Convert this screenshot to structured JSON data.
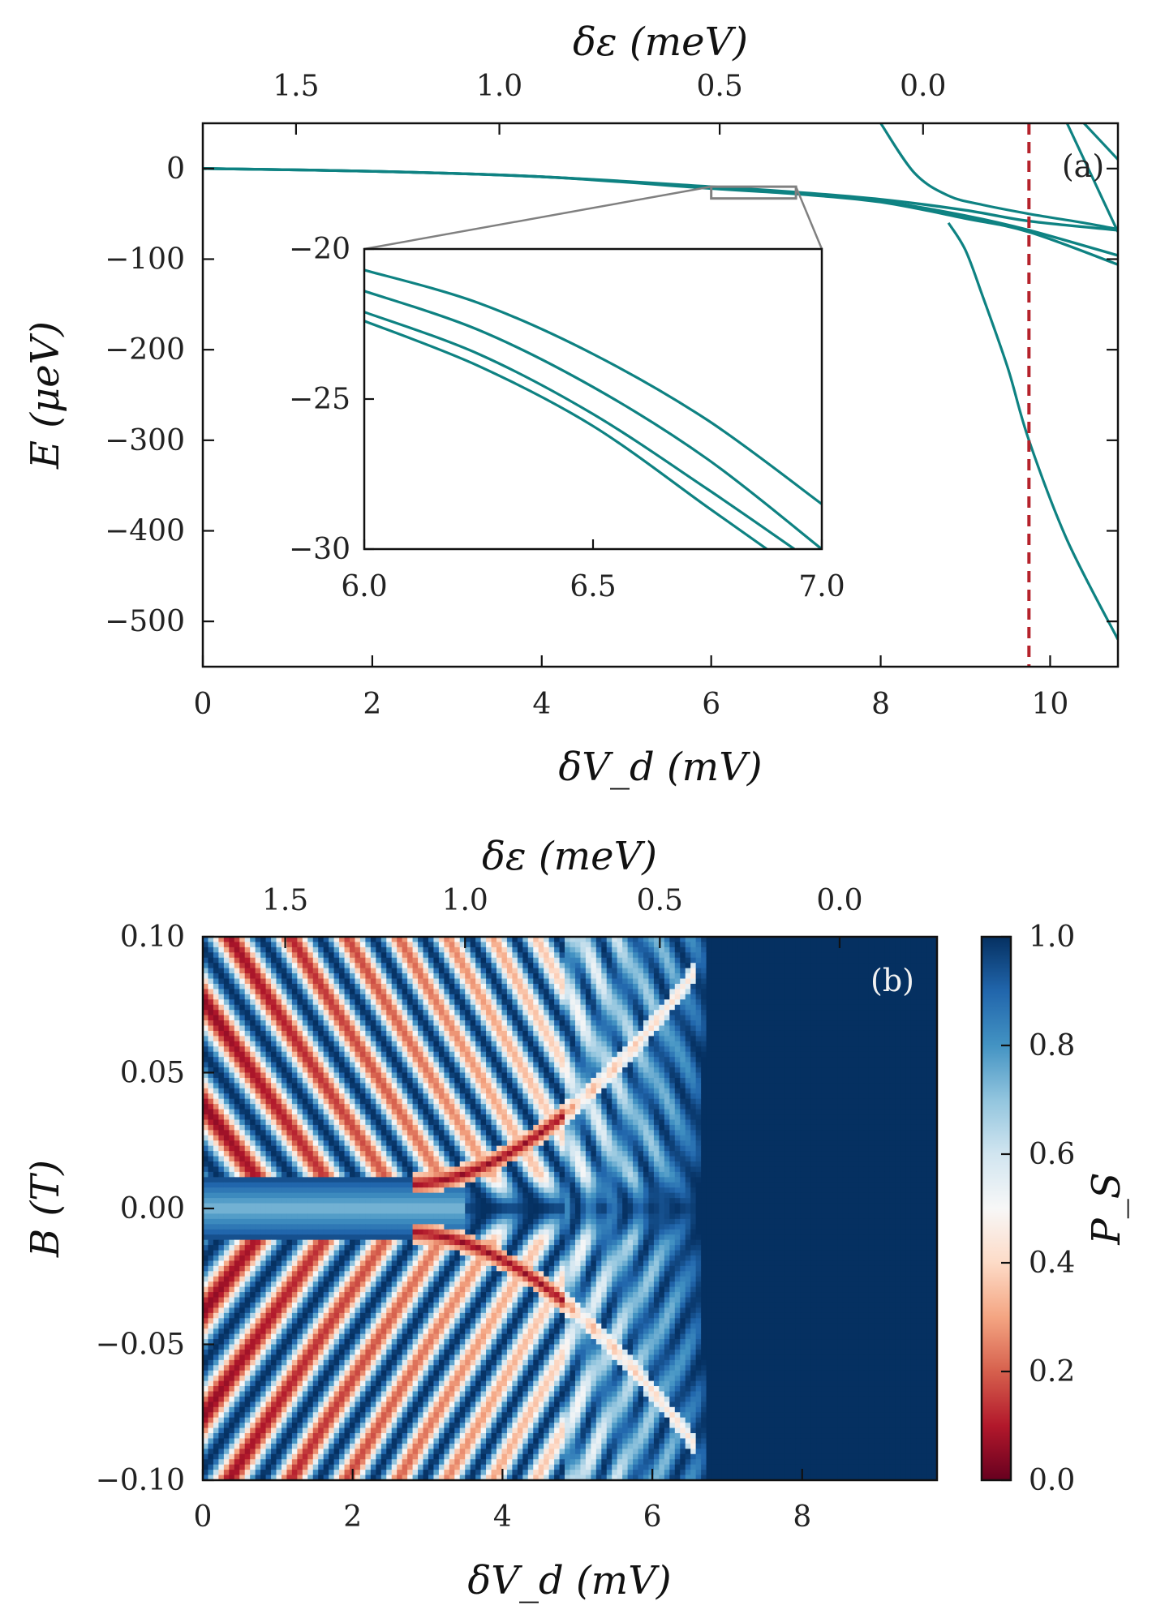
{
  "chart_data": [
    {
      "type": "line",
      "panel_label": "(a)",
      "xlabel": "δV_d (mV)",
      "ylabel": "E (μeV)",
      "top_xlabel": "δε (meV)",
      "xlim": [
        0,
        10.8
      ],
      "ylim": [
        -550,
        50
      ],
      "x_ticks": [
        0,
        2,
        4,
        6,
        8,
        10
      ],
      "y_ticks": [
        0,
        -100,
        -200,
        -300,
        -400,
        -500
      ],
      "top_ticks": [
        {
          "label": "1.5",
          "x": 1.1
        },
        {
          "label": "1.0",
          "x": 3.5
        },
        {
          "label": "0.5",
          "x": 6.1
        },
        {
          "label": "0.0",
          "x": 8.5
        }
      ],
      "vline": {
        "x": 9.75,
        "color": "#b5222b",
        "style": "dashed"
      },
      "line_color": "#0e8282",
      "series": [
        {
          "x": [
            0,
            2,
            4,
            6,
            7,
            8,
            9,
            9.75,
            10.8
          ],
          "y": [
            0,
            -3,
            -9,
            -20,
            -26,
            -34,
            -46,
            -58,
            -68
          ]
        },
        {
          "x": [
            0,
            2,
            4,
            6,
            7,
            8,
            9,
            9.75,
            10.8
          ],
          "y": [
            0,
            -3,
            -9,
            -21,
            -27,
            -36,
            -52,
            -68,
            -96
          ]
        },
        {
          "x": [
            0,
            2,
            4,
            6,
            7,
            8,
            9,
            9.75,
            10.8
          ],
          "y": [
            0,
            -3,
            -9,
            -22,
            -28,
            -37,
            -55,
            -70,
            -106
          ]
        },
        {
          "x": [
            8.0,
            8.4,
            8.8,
            9.2,
            9.75,
            10.4,
            10.8
          ],
          "y": [
            50,
            -5,
            -30,
            -40,
            -50,
            -60,
            -67
          ]
        },
        {
          "x": [
            8.8,
            9.0,
            9.2,
            9.5,
            9.75,
            10.2,
            10.8
          ],
          "y": [
            -60,
            -90,
            -140,
            -220,
            -300,
            -410,
            -520
          ]
        },
        {
          "x": [
            10.2,
            10.5,
            10.8
          ],
          "y": [
            50,
            -10,
            -70
          ]
        },
        {
          "x": [
            10.4,
            10.6,
            10.8
          ],
          "y": [
            50,
            30,
            10
          ]
        }
      ],
      "inset": {
        "xlim": [
          6.0,
          7.0
        ],
        "ylim": [
          -30,
          -20
        ],
        "x_ticks": [
          "6.0",
          "6.5",
          "7.0"
        ],
        "y_ticks": [
          "-20",
          "-25",
          "-30"
        ],
        "zoom_box": {
          "x": [
            6.0,
            7.0
          ],
          "y": [
            -33,
            -20
          ]
        },
        "series": [
          {
            "x": [
              6.0,
              6.25,
              6.5,
              6.75,
              7.0
            ],
            "y": [
              -20.7,
              -21.8,
              -23.5,
              -25.7,
              -28.5
            ]
          },
          {
            "x": [
              6.0,
              6.25,
              6.5,
              6.75,
              7.0
            ],
            "y": [
              -21.4,
              -22.7,
              -24.6,
              -27.0,
              -30.0
            ]
          },
          {
            "x": [
              6.0,
              6.25,
              6.5,
              6.75,
              6.94
            ],
            "y": [
              -22.1,
              -23.5,
              -25.5,
              -28.0,
              -30.0
            ]
          },
          {
            "x": [
              6.0,
              6.25,
              6.5,
              6.75,
              6.88
            ],
            "y": [
              -22.4,
              -23.9,
              -25.9,
              -28.6,
              -30.0
            ]
          }
        ]
      }
    },
    {
      "type": "heatmap",
      "panel_label": "(b)",
      "xlabel": "δV_d (mV)",
      "ylabel": "B (T)",
      "top_xlabel": "δε (meV)",
      "colorbar_label": "P_S",
      "xlim": [
        0,
        9.8
      ],
      "ylim": [
        -0.1,
        0.1
      ],
      "x_ticks": [
        0,
        2,
        4,
        6,
        8
      ],
      "y_ticks": [
        "0.10",
        "0.05",
        "0.00",
        "−0.05",
        "−0.10"
      ],
      "top_ticks": [
        {
          "label": "1.5",
          "x": 1.1
        },
        {
          "label": "1.0",
          "x": 3.5
        },
        {
          "label": "0.5",
          "x": 6.1
        },
        {
          "label": "0.0",
          "x": 8.5
        }
      ],
      "colorbar": {
        "range": [
          0,
          1
        ],
        "ticks": [
          "1.0",
          "0.8",
          "0.6",
          "0.4",
          "0.2",
          "0.0"
        ],
        "colors": [
          "#67001f",
          "#b2182b",
          "#d6604d",
          "#f4a582",
          "#fddbc7",
          "#f7f7f7",
          "#d1e5f0",
          "#92c5de",
          "#4393c3",
          "#2166ac",
          "#053061"
        ]
      }
    }
  ]
}
